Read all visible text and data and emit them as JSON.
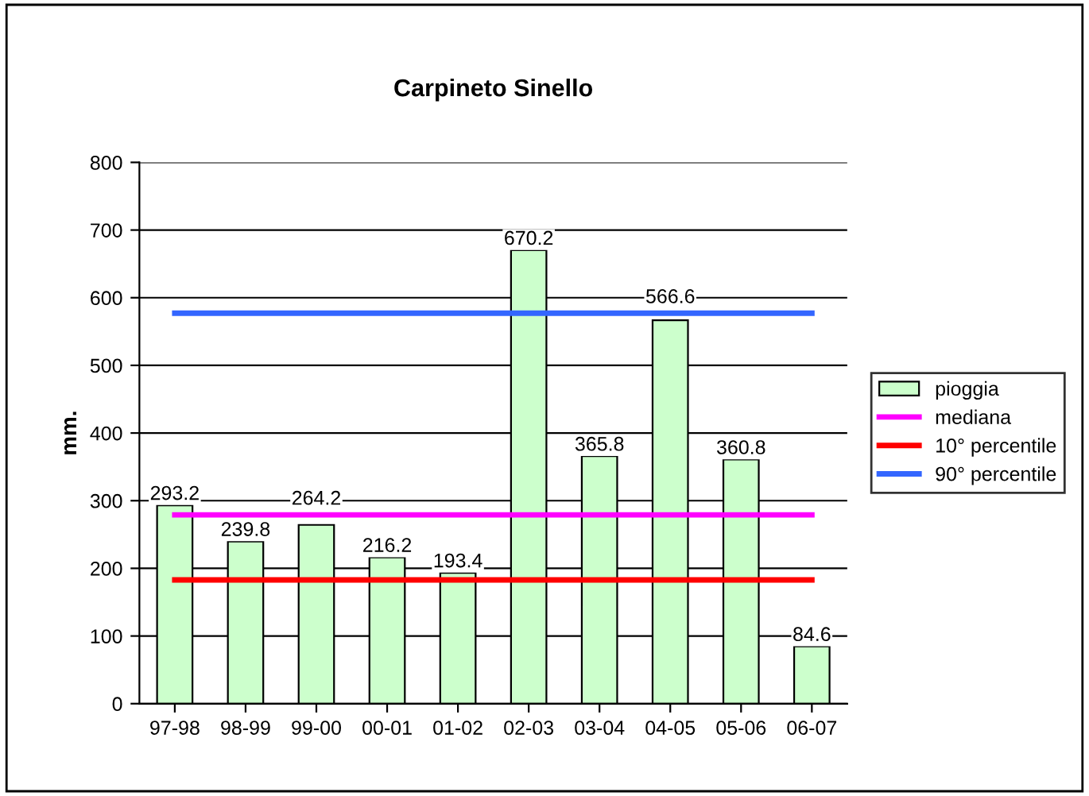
{
  "chart_data": {
    "type": "bar",
    "title": "Carpineto Sinello",
    "ylabel": "mm.",
    "categories": [
      "97-98",
      "98-99",
      "99-00",
      "00-01",
      "01-02",
      "02-03",
      "03-04",
      "04-05",
      "05-06",
      "06-07"
    ],
    "series": [
      {
        "name": "pioggia",
        "type": "bar",
        "color": "#ccffcc",
        "values": [
          293.2,
          239.8,
          264.2,
          216.2,
          193.4,
          670.2,
          365.8,
          566.6,
          360.8,
          84.6
        ],
        "data_labels": true
      },
      {
        "name": "mediana",
        "type": "line",
        "color": "#ff00ff",
        "values": [
          279,
          279,
          279,
          279,
          279,
          279,
          279,
          279,
          279,
          279
        ]
      },
      {
        "name": "10° percentile",
        "type": "line",
        "color": "#ff0000",
        "values": [
          183,
          183,
          183,
          183,
          183,
          183,
          183,
          183,
          183,
          183
        ]
      },
      {
        "name": "90° percentile",
        "type": "line",
        "color": "#3366ff",
        "values": [
          577,
          577,
          577,
          577,
          577,
          577,
          577,
          577,
          577,
          577
        ]
      }
    ],
    "ylim": [
      0,
      800
    ],
    "yticks": [
      0,
      100,
      200,
      300,
      400,
      500,
      600,
      700,
      800
    ],
    "grid": "y",
    "legend": "right"
  }
}
